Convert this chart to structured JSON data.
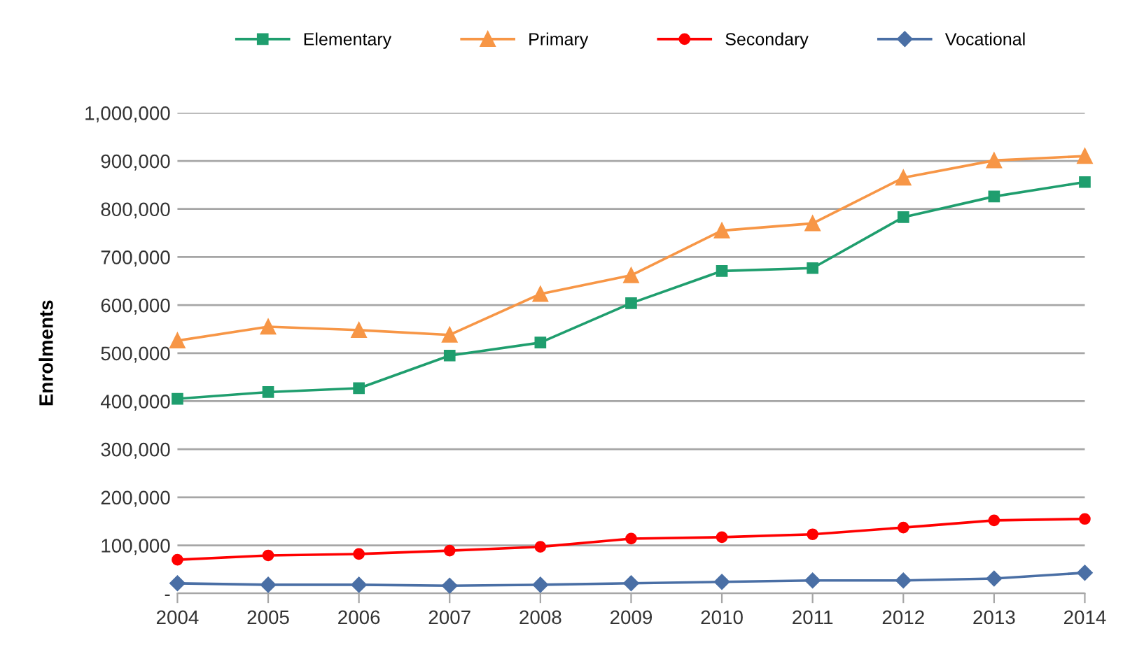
{
  "chart_data": {
    "type": "line",
    "ylabel": "Enrolments",
    "categories": [
      "2004",
      "2005",
      "2006",
      "2007",
      "2008",
      "2009",
      "2010",
      "2011",
      "2012",
      "2013",
      "2014"
    ],
    "series": [
      {
        "name": "Elementary",
        "color": "#1f9e6e",
        "marker": "square",
        "values": [
          405000,
          419000,
          427000,
          495000,
          522000,
          604000,
          671000,
          677000,
          783000,
          826000,
          856000
        ]
      },
      {
        "name": "Primary",
        "color": "#f79646",
        "marker": "triangle",
        "values": [
          526000,
          555000,
          548000,
          538000,
          623000,
          662000,
          755000,
          770000,
          865000,
          901000,
          910000
        ]
      },
      {
        "name": "Secondary",
        "color": "#ff0000",
        "marker": "circle",
        "values": [
          70000,
          79000,
          82000,
          89000,
          97000,
          114000,
          117000,
          123000,
          137000,
          152000,
          155000
        ]
      },
      {
        "name": "Vocational",
        "color": "#4a6fa5",
        "marker": "diamond",
        "values": [
          21000,
          18000,
          18000,
          16000,
          18000,
          21000,
          24000,
          27000,
          27000,
          31000,
          43000
        ]
      }
    ],
    "ylim": [
      0,
      1000000
    ],
    "yticks": [
      {
        "value": 0,
        "label": "-"
      },
      {
        "value": 100000,
        "label": "100,000"
      },
      {
        "value": 200000,
        "label": "200,000"
      },
      {
        "value": 300000,
        "label": "300,000"
      },
      {
        "value": 400000,
        "label": "400,000"
      },
      {
        "value": 500000,
        "label": "500,000"
      },
      {
        "value": 600000,
        "label": "600,000"
      },
      {
        "value": 700000,
        "label": "700,000"
      },
      {
        "value": 800000,
        "label": "800,000"
      },
      {
        "value": 900000,
        "label": "900,000"
      },
      {
        "value": 1000000,
        "label": "1,000,000"
      }
    ],
    "grid": "y",
    "legend": "top",
    "line_style": "solid"
  }
}
